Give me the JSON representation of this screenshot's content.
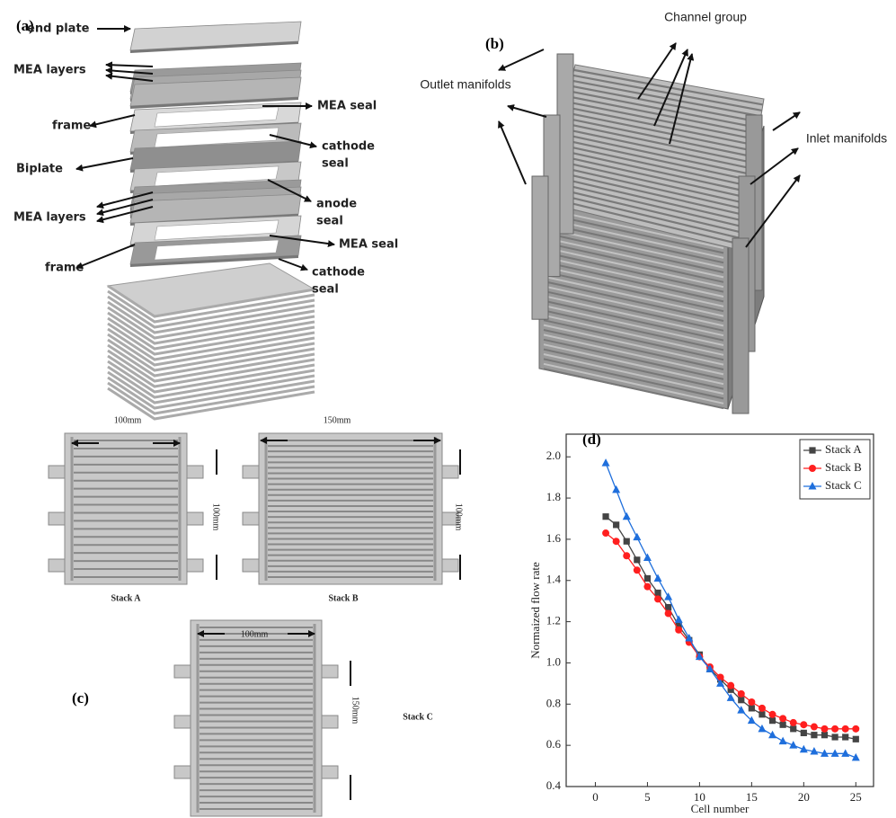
{
  "panel_a": {
    "label": "(a)",
    "callouts": [
      {
        "lines": [
          "end plate"
        ]
      },
      {
        "lines": [
          "MEA layers"
        ]
      },
      {
        "lines": [
          "frame"
        ]
      },
      {
        "lines": [
          "MEA seal"
        ]
      },
      {
        "lines": [
          "cathode",
          "seal"
        ]
      },
      {
        "lines": [
          "Biplate"
        ]
      },
      {
        "lines": [
          "anode",
          "seal"
        ]
      },
      {
        "lines": [
          "MEA layers"
        ]
      },
      {
        "lines": [
          "MEA seal"
        ]
      },
      {
        "lines": [
          "frame"
        ]
      },
      {
        "lines": [
          "cathode",
          "seal"
        ]
      }
    ]
  },
  "panel_b": {
    "label": "(b)",
    "callouts": [
      "Channel group",
      "Outlet manifolds",
      "Inlet manifolds"
    ]
  },
  "panel_c": {
    "label": "(c)",
    "dimensions": [
      "100mm",
      "150mm",
      "100mm",
      "100mm",
      "100mm",
      "150mm"
    ],
    "stacks": [
      "Stack A",
      "Stack B",
      "Stack C"
    ]
  },
  "chart_data": {
    "type": "line",
    "panel_label": "(d)",
    "x_label": "Cell number",
    "y_label": "Normaized flow rate",
    "x": [
      1,
      2,
      3,
      4,
      5,
      6,
      7,
      8,
      9,
      10,
      11,
      12,
      13,
      14,
      15,
      16,
      17,
      18,
      19,
      20,
      21,
      22,
      23,
      24,
      25
    ],
    "series": [
      {
        "name": "Stack A",
        "color": "#444444",
        "marker": "square",
        "values": [
          1.71,
          1.67,
          1.59,
          1.5,
          1.41,
          1.34,
          1.27,
          1.18,
          1.11,
          1.04,
          0.97,
          0.92,
          0.87,
          0.82,
          0.78,
          0.75,
          0.72,
          0.7,
          0.68,
          0.66,
          0.65,
          0.65,
          0.64,
          0.64,
          0.63
        ]
      },
      {
        "name": "Stack B",
        "color": "#ff1f1f",
        "marker": "circle",
        "values": [
          1.63,
          1.59,
          1.52,
          1.45,
          1.37,
          1.31,
          1.24,
          1.16,
          1.1,
          1.03,
          0.98,
          0.93,
          0.89,
          0.85,
          0.81,
          0.78,
          0.75,
          0.73,
          0.71,
          0.7,
          0.69,
          0.68,
          0.68,
          0.68,
          0.68
        ]
      },
      {
        "name": "Stack C",
        "color": "#1f6fdc",
        "marker": "triangle",
        "values": [
          1.97,
          1.84,
          1.71,
          1.61,
          1.51,
          1.41,
          1.32,
          1.21,
          1.12,
          1.03,
          0.97,
          0.9,
          0.83,
          0.77,
          0.72,
          0.68,
          0.65,
          0.62,
          0.6,
          0.58,
          0.57,
          0.56,
          0.56,
          0.56,
          0.54
        ]
      }
    ],
    "xlim": [
      -2.8,
      26.7
    ],
    "ylim": [
      0.4,
      2.11
    ],
    "xticks": [
      0,
      5,
      10,
      15,
      20,
      25
    ],
    "yticks": [
      0.4,
      0.6,
      0.8,
      {
        "value": 1,
        "label": "1.0"
      },
      1.2,
      1.4,
      1.6,
      1.8,
      {
        "value": 2,
        "label": "2.0"
      }
    ],
    "legend": "upper right"
  }
}
